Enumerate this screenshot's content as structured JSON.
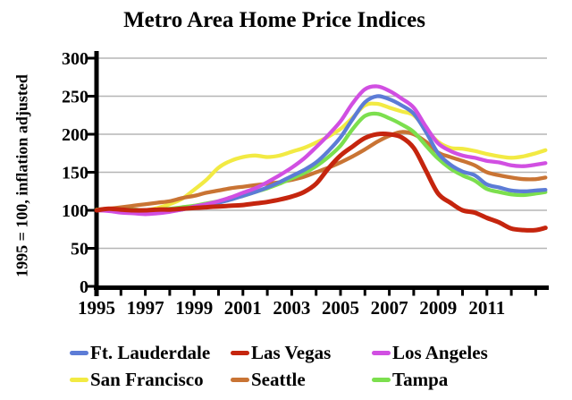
{
  "title": "Metro Area Home Price Indices",
  "y_axis_label": "1995 = 100, inflation adjusted",
  "chart_data": {
    "type": "line",
    "title": "Metro Area Home Price Indices",
    "xlabel": "",
    "ylabel": "1995 = 100, inflation adjusted",
    "ylim": [
      0,
      300
    ],
    "xlim": [
      1995,
      2013.6
    ],
    "grid": "horizontal",
    "legend_position": "bottom",
    "y_ticks": [
      300,
      250,
      200,
      150,
      100,
      50,
      0
    ],
    "x_tick_years": [
      1995,
      1996,
      1997,
      1998,
      1999,
      2000,
      2001,
      2002,
      2003,
      2004,
      2005,
      2006,
      2007,
      2008,
      2009,
      2010,
      2011,
      2012,
      2013
    ],
    "x_tick_labels": [
      1995,
      1997,
      1999,
      2001,
      2003,
      2005,
      2007,
      2009,
      2011
    ],
    "x": [
      1995,
      1995.5,
      1996,
      1996.5,
      1997,
      1997.5,
      1998,
      1998.5,
      1999,
      1999.5,
      2000,
      2000.5,
      2001,
      2001.5,
      2002,
      2002.5,
      2003,
      2003.5,
      2004,
      2004.5,
      2005,
      2005.5,
      2006,
      2006.5,
      2007,
      2007.5,
      2008,
      2008.5,
      2009,
      2009.5,
      2010,
      2010.5,
      2011,
      2011.5,
      2012,
      2012.5,
      2013,
      2013.4
    ],
    "series": [
      {
        "name": "Ft. Lauderdale",
        "color": "#5c7cd6",
        "values": [
          100,
          100,
          99,
          98,
          97,
          97,
          99,
          101,
          104,
          107,
          110,
          114,
          119,
          124,
          130,
          137,
          145,
          153,
          163,
          178,
          196,
          220,
          242,
          250,
          246,
          238,
          227,
          203,
          175,
          160,
          151,
          146,
          134,
          130,
          126,
          125,
          126,
          127
        ]
      },
      {
        "name": "Las Vegas",
        "color": "#c5250e",
        "values": [
          100,
          102,
          101,
          100,
          100,
          101,
          101,
          102,
          103,
          104,
          105,
          106,
          107,
          109,
          111,
          114,
          118,
          124,
          135,
          155,
          172,
          184,
          195,
          200,
          200,
          196,
          182,
          152,
          122,
          110,
          100,
          97,
          90,
          84,
          76,
          74,
          74,
          77
        ]
      },
      {
        "name": "Los Angeles",
        "color": "#d14fe2",
        "values": [
          100,
          99,
          97,
          96,
          95,
          96,
          98,
          101,
          105,
          108,
          112,
          117,
          123,
          129,
          137,
          146,
          156,
          168,
          183,
          199,
          217,
          241,
          259,
          263,
          257,
          247,
          235,
          210,
          188,
          178,
          172,
          169,
          165,
          163,
          159,
          158,
          160,
          162
        ]
      },
      {
        "name": "San Francisco",
        "color": "#f2ea43",
        "values": [
          100,
          100,
          99,
          99,
          100,
          103,
          108,
          115,
          127,
          140,
          156,
          165,
          170,
          172,
          170,
          172,
          177,
          182,
          189,
          197,
          207,
          222,
          238,
          240,
          235,
          230,
          225,
          207,
          190,
          182,
          181,
          178,
          174,
          171,
          169,
          171,
          175,
          179
        ]
      },
      {
        "name": "Seattle",
        "color": "#c97434",
        "values": [
          100,
          102,
          104,
          106,
          108,
          110,
          112,
          116,
          119,
          123,
          126,
          129,
          131,
          133,
          135,
          137,
          140,
          144,
          150,
          156,
          163,
          171,
          180,
          190,
          198,
          203,
          200,
          190,
          176,
          170,
          165,
          159,
          150,
          146,
          143,
          141,
          141,
          143
        ]
      },
      {
        "name": "Tampa",
        "color": "#7cdf4e",
        "values": [
          101,
          102,
          101,
          101,
          100,
          101,
          102,
          104,
          106,
          109,
          112,
          116,
          119,
          124,
          129,
          135,
          142,
          149,
          158,
          170,
          185,
          207,
          224,
          227,
          221,
          213,
          203,
          185,
          168,
          155,
          146,
          139,
          128,
          124,
          121,
          120,
          122,
          124
        ]
      }
    ]
  }
}
